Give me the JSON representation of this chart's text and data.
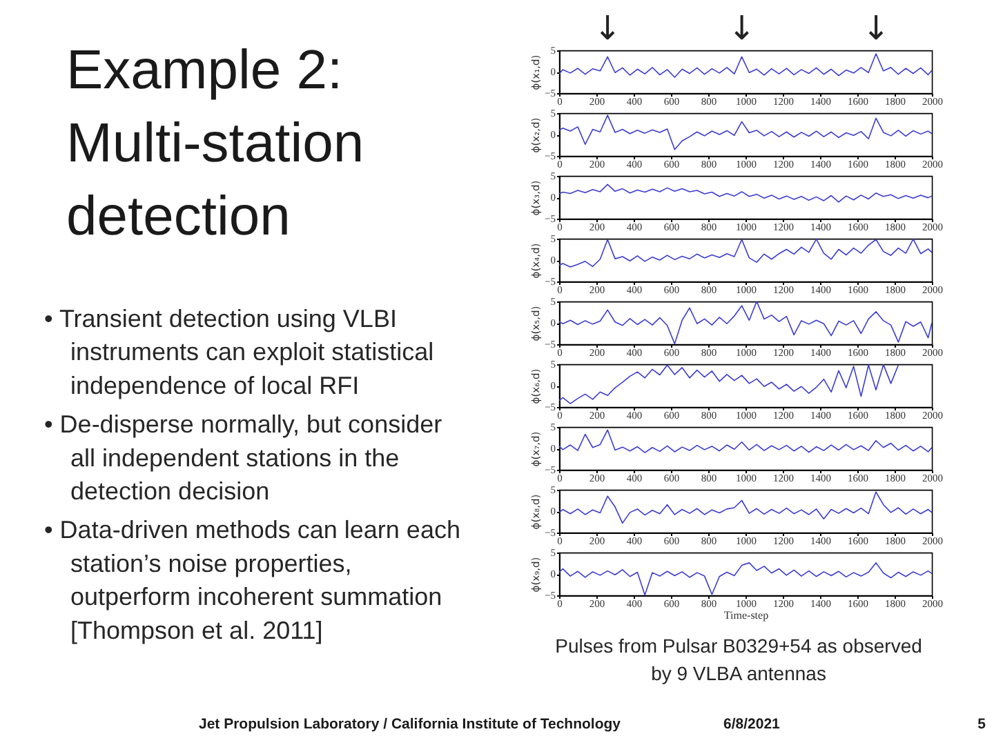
{
  "chart_data": [
    {
      "type": "other",
      "title": "Example 2: Multi-station detection",
      "annotations": [
        "• Transient detection using VLBI instruments can exploit statistical independence of local RFI",
        "• De-disperse normally, but consider all independent stations in the detection decision",
        "• Data-driven methods can learn each station’s noise properties, outperform incoherent summation [Thompson et al. 2011]"
      ]
    },
    {
      "type": "line",
      "ylabel": "ϕ(x₁,d)",
      "color": "#3c3cd2",
      "xlim": [
        0,
        2000
      ],
      "ylim": [
        -5,
        5
      ],
      "xticks": [
        0,
        200,
        400,
        600,
        800,
        1000,
        1200,
        1400,
        1600,
        1800,
        2000
      ],
      "yticks": [
        -5,
        0,
        5
      ],
      "annotations": [
        "↓",
        "↓",
        "↓"
      ],
      "x": [
        0,
        20,
        60,
        100,
        140,
        180,
        220,
        260,
        300,
        340,
        380,
        420,
        460,
        500,
        540,
        580,
        620,
        660,
        700,
        740,
        780,
        820,
        860,
        900,
        940,
        980,
        1020,
        1060,
        1100,
        1140,
        1180,
        1220,
        1260,
        1300,
        1340,
        1380,
        1420,
        1460,
        1500,
        1540,
        1580,
        1620,
        1660,
        1700,
        1740,
        1780,
        1820,
        1860,
        1900,
        1940,
        1980,
        2000
      ],
      "values": [
        -0.5,
        0.5,
        -0.3,
        0.8,
        -0.6,
        0.7,
        0.2,
        3.5,
        -0.2,
        0.9,
        -0.8,
        0.6,
        -0.5,
        1.0,
        -0.7,
        0.5,
        -1.3,
        0.6,
        -0.4,
        0.9,
        -0.6,
        0.7,
        -0.3,
        1.0,
        -0.5,
        3.5,
        -0.2,
        0.6,
        -0.8,
        0.7,
        -0.5,
        0.8,
        -0.7,
        0.5,
        -0.4,
        0.9,
        -0.6,
        0.6,
        -0.9,
        0.4,
        -0.3,
        1.0,
        -0.2,
        4.2,
        0.2,
        1.0,
        -0.6,
        0.8,
        -0.4,
        0.9,
        -0.7,
        0.3
      ]
    },
    {
      "type": "line",
      "ylabel": "ϕ(x₂,d)",
      "color": "#3c3cd2",
      "xlim": [
        0,
        2000
      ],
      "ylim": [
        -5,
        5
      ],
      "xticks": [
        0,
        200,
        400,
        600,
        800,
        1000,
        1200,
        1400,
        1600,
        1800,
        2000
      ],
      "yticks": [
        -5,
        0,
        5
      ],
      "x": [
        0,
        20,
        60,
        100,
        140,
        180,
        220,
        260,
        300,
        340,
        380,
        420,
        460,
        500,
        540,
        580,
        620,
        660,
        700,
        740,
        780,
        820,
        860,
        900,
        940,
        980,
        1020,
        1060,
        1100,
        1140,
        1180,
        1220,
        1260,
        1300,
        1340,
        1380,
        1420,
        1460,
        1500,
        1540,
        1580,
        1620,
        1660,
        1700,
        1740,
        1780,
        1820,
        1860,
        1900,
        1940,
        1980,
        2000
      ],
      "values": [
        1.0,
        1.5,
        0.8,
        1.8,
        -2.3,
        1.2,
        0.6,
        4.5,
        0.5,
        1.2,
        0.2,
        1.0,
        0.3,
        1.1,
        0.5,
        1.3,
        -3.5,
        -1.5,
        -0.5,
        0.6,
        -0.3,
        0.8,
        0.0,
        0.9,
        -0.2,
        3.0,
        0.4,
        1.0,
        -0.3,
        0.7,
        -0.5,
        0.6,
        -0.6,
        0.5,
        -0.4,
        0.8,
        -0.5,
        0.6,
        -0.7,
        0.4,
        -0.2,
        0.7,
        -1.0,
        3.8,
        0.5,
        -0.3,
        1.0,
        -0.4,
        0.9,
        0.1,
        0.8,
        0.2
      ]
    },
    {
      "type": "line",
      "ylabel": "ϕ(x₃,d)",
      "color": "#3c3cd2",
      "xlim": [
        0,
        2000
      ],
      "ylim": [
        -5,
        5
      ],
      "xticks": [
        0,
        200,
        400,
        600,
        800,
        1000,
        1200,
        1400,
        1600,
        1800,
        2000
      ],
      "yticks": [
        -5,
        0,
        5
      ],
      "x": [
        0,
        20,
        60,
        100,
        140,
        180,
        220,
        260,
        300,
        340,
        380,
        420,
        460,
        500,
        540,
        580,
        620,
        660,
        700,
        740,
        780,
        820,
        860,
        900,
        940,
        980,
        1020,
        1060,
        1100,
        1140,
        1180,
        1220,
        1260,
        1300,
        1340,
        1380,
        1420,
        1460,
        1500,
        1540,
        1580,
        1620,
        1660,
        1700,
        1740,
        1780,
        1820,
        1860,
        1900,
        1940,
        1980,
        2000
      ],
      "values": [
        0.8,
        1.2,
        0.9,
        1.6,
        1.1,
        1.8,
        1.3,
        3.0,
        1.4,
        2.0,
        1.0,
        1.7,
        1.2,
        1.9,
        1.3,
        2.2,
        1.4,
        2.0,
        1.3,
        1.6,
        0.8,
        1.2,
        0.2,
        0.9,
        0.3,
        1.3,
        0.2,
        0.7,
        -0.2,
        0.5,
        -0.4,
        0.3,
        -0.5,
        0.2,
        -0.7,
        0.1,
        -0.8,
        0.4,
        -1.1,
        0.3,
        -0.6,
        0.5,
        -0.4,
        1.0,
        0.2,
        0.6,
        -0.3,
        0.4,
        -0.2,
        0.5,
        -0.1,
        0.3
      ]
    },
    {
      "type": "line",
      "ylabel": "ϕ(x₄,d)",
      "color": "#3c3cd2",
      "xlim": [
        0,
        2000
      ],
      "ylim": [
        -5,
        5
      ],
      "xticks": [
        0,
        200,
        400,
        600,
        800,
        1000,
        1200,
        1400,
        1600,
        1800,
        2000
      ],
      "yticks": [
        -5,
        0,
        5
      ],
      "x": [
        0,
        20,
        60,
        100,
        140,
        180,
        220,
        260,
        300,
        340,
        380,
        420,
        460,
        500,
        540,
        580,
        620,
        660,
        700,
        740,
        780,
        820,
        860,
        900,
        940,
        980,
        1020,
        1060,
        1100,
        1140,
        1180,
        1220,
        1260,
        1300,
        1340,
        1380,
        1420,
        1460,
        1500,
        1540,
        1580,
        1620,
        1660,
        1700,
        1740,
        1780,
        1820,
        1860,
        1900,
        1940,
        1980,
        2000
      ],
      "values": [
        -1.2,
        -0.8,
        -1.6,
        -1.0,
        -0.3,
        -1.5,
        0.2,
        4.8,
        0.3,
        0.8,
        -0.2,
        1.0,
        -0.3,
        0.7,
        0.0,
        1.1,
        0.1,
        0.9,
        0.3,
        1.4,
        0.5,
        1.2,
        0.6,
        1.5,
        0.8,
        4.8,
        0.5,
        -0.5,
        1.4,
        0.2,
        1.5,
        2.5,
        1.4,
        3.0,
        1.8,
        4.9,
        1.6,
        0.2,
        2.5,
        1.2,
        2.8,
        1.6,
        3.5,
        4.8,
        2.0,
        1.1,
        2.8,
        1.6,
        4.9,
        1.5,
        2.6,
        1.8
      ]
    },
    {
      "type": "line",
      "ylabel": "ϕ(x₅,d)",
      "color": "#3c3cd2",
      "xlim": [
        0,
        2000
      ],
      "ylim": [
        -5,
        5
      ],
      "xticks": [
        0,
        200,
        400,
        600,
        800,
        1000,
        1200,
        1400,
        1600,
        1800,
        2000
      ],
      "yticks": [
        -5,
        0,
        5
      ],
      "x": [
        0,
        20,
        60,
        100,
        140,
        180,
        220,
        260,
        300,
        340,
        380,
        420,
        460,
        500,
        540,
        580,
        620,
        660,
        700,
        740,
        780,
        820,
        860,
        900,
        940,
        980,
        1020,
        1060,
        1100,
        1140,
        1180,
        1220,
        1260,
        1300,
        1340,
        1380,
        1420,
        1460,
        1500,
        1540,
        1580,
        1620,
        1660,
        1700,
        1740,
        1780,
        1820,
        1860,
        1900,
        1940,
        1980,
        2000
      ],
      "values": [
        0.3,
        -0.2,
        0.6,
        -0.4,
        0.5,
        -0.3,
        0.4,
        3.0,
        0.2,
        -0.6,
        1.0,
        -0.4,
        0.8,
        -0.5,
        1.2,
        -0.6,
        -4.9,
        0.6,
        3.5,
        -0.2,
        0.9,
        -0.5,
        1.3,
        -0.2,
        1.6,
        4.0,
        0.6,
        5.0,
        0.9,
        1.8,
        0.3,
        1.5,
        -2.8,
        0.5,
        -0.3,
        0.6,
        -0.2,
        -3.0,
        0.4,
        -0.5,
        0.5,
        -2.5,
        0.9,
        2.6,
        0.5,
        -0.5,
        -4.5,
        0.3,
        -0.8,
        0.2,
        -3.5,
        0.0
      ]
    },
    {
      "type": "line",
      "ylabel": "ϕ(x₆,d)",
      "color": "#3c3cd2",
      "xlim": [
        0,
        2000
      ],
      "ylim": [
        -5,
        5
      ],
      "xticks": [
        0,
        200,
        400,
        600,
        800,
        1000,
        1200,
        1400,
        1600,
        1800,
        2000
      ],
      "yticks": [
        -5,
        0,
        5
      ],
      "x": [
        0,
        20,
        60,
        100,
        140,
        180,
        220,
        260,
        300,
        340,
        380,
        420,
        460,
        500,
        540,
        580,
        620,
        660,
        700,
        740,
        780,
        820,
        860,
        900,
        940,
        980,
        1020,
        1060,
        1100,
        1140,
        1180,
        1220,
        1260,
        1300,
        1340,
        1380,
        1420,
        1460,
        1500,
        1540,
        1580,
        1620,
        1660,
        1700,
        1740,
        1780,
        1820
      ],
      "values": [
        -3.5,
        -2.8,
        -4.2,
        -3.0,
        -2.0,
        -3.2,
        -1.5,
        -2.3,
        -0.5,
        0.8,
        2.2,
        3.2,
        1.8,
        3.8,
        2.5,
        4.8,
        2.6,
        4.2,
        1.8,
        3.6,
        2.0,
        3.4,
        1.0,
        2.6,
        1.2,
        2.4,
        0.5,
        1.6,
        -0.2,
        0.8,
        -0.8,
        0.3,
        -1.3,
        -0.2,
        -1.8,
        -0.4,
        1.5,
        -1.5,
        3.5,
        -0.5,
        4.5,
        -2.5,
        4.8,
        -1.0,
        4.9,
        0.5,
        4.8
      ]
    },
    {
      "type": "line",
      "ylabel": "ϕ(x₇,d)",
      "color": "#3c3cd2",
      "xlim": [
        0,
        2000
      ],
      "ylim": [
        -5,
        5
      ],
      "xticks": [
        0,
        200,
        400,
        600,
        800,
        1000,
        1200,
        1400,
        1600,
        1800,
        2000
      ],
      "yticks": [
        -5,
        0,
        5
      ],
      "x": [
        0,
        20,
        60,
        100,
        140,
        180,
        220,
        260,
        300,
        340,
        380,
        420,
        460,
        500,
        540,
        580,
        620,
        660,
        700,
        740,
        780,
        820,
        860,
        900,
        940,
        980,
        1020,
        1060,
        1100,
        1140,
        1180,
        1220,
        1260,
        1300,
        1340,
        1380,
        1420,
        1460,
        1500,
        1540,
        1580,
        1620,
        1660,
        1700,
        1740,
        1780,
        1820,
        1860,
        1900,
        1940,
        1980,
        2000
      ],
      "values": [
        0.5,
        -0.3,
        0.8,
        -0.5,
        3.3,
        0.2,
        0.9,
        4.3,
        -0.4,
        0.3,
        -0.6,
        0.4,
        -1.0,
        0.2,
        -0.7,
        0.6,
        -0.8,
        0.3,
        -0.5,
        0.7,
        -0.3,
        0.5,
        -0.6,
        0.8,
        -0.2,
        1.5,
        -0.4,
        0.9,
        -0.5,
        0.6,
        -0.3,
        0.7,
        -0.6,
        0.5,
        -0.9,
        0.4,
        -0.5,
        0.8,
        -0.4,
        0.9,
        -0.3,
        0.6,
        -0.5,
        1.8,
        0.2,
        1.2,
        -0.4,
        0.7,
        -0.6,
        0.5,
        -0.8,
        0.2
      ]
    },
    {
      "type": "line",
      "ylabel": "ϕ(x₈,d)",
      "color": "#3c3cd2",
      "xlim": [
        0,
        2000
      ],
      "ylim": [
        -5,
        5
      ],
      "xticks": [
        0,
        200,
        400,
        600,
        800,
        1000,
        1200,
        1400,
        1600,
        1800,
        2000
      ],
      "yticks": [
        -5,
        0,
        5
      ],
      "x": [
        0,
        20,
        60,
        100,
        140,
        180,
        220,
        260,
        300,
        340,
        380,
        420,
        460,
        500,
        540,
        580,
        620,
        660,
        700,
        740,
        780,
        820,
        860,
        900,
        940,
        980,
        1020,
        1060,
        1100,
        1140,
        1180,
        1220,
        1260,
        1300,
        1340,
        1380,
        1420,
        1460,
        1500,
        1540,
        1580,
        1620,
        1660,
        1700,
        1740,
        1780,
        1820,
        1860,
        1900,
        1940,
        1980,
        2000
      ],
      "values": [
        -0.3,
        0.4,
        -0.6,
        0.5,
        -0.8,
        0.3,
        -0.4,
        3.5,
        1.0,
        -2.8,
        -0.3,
        0.5,
        -0.9,
        0.2,
        -0.6,
        1.5,
        -0.8,
        0.4,
        -0.5,
        0.6,
        -0.8,
        0.3,
        -0.4,
        0.5,
        0.8,
        2.5,
        -0.5,
        0.6,
        -0.7,
        0.4,
        -0.5,
        0.7,
        -0.6,
        0.3,
        -0.8,
        0.5,
        -1.8,
        0.4,
        -0.5,
        0.6,
        -0.4,
        0.7,
        -0.6,
        4.5,
        1.5,
        -0.3,
        0.8,
        -0.7,
        0.5,
        -0.6,
        0.4,
        -0.3
      ]
    },
    {
      "type": "line",
      "ylabel": "ϕ(x₉,d)",
      "xlabel": "Time-step",
      "color": "#3c3cd2",
      "xlim": [
        0,
        2000
      ],
      "ylim": [
        -5,
        5
      ],
      "xticks": [
        0,
        200,
        400,
        600,
        800,
        1000,
        1200,
        1400,
        1600,
        1800,
        2000
      ],
      "yticks": [
        -5,
        0,
        5
      ],
      "annotations": [
        "Pulses from Pulsar B0329+54 as observed by 9 VLBA antennas"
      ],
      "x": [
        0,
        20,
        60,
        100,
        140,
        180,
        220,
        260,
        300,
        340,
        380,
        420,
        460,
        500,
        540,
        580,
        620,
        660,
        700,
        740,
        780,
        820,
        860,
        900,
        940,
        980,
        1020,
        1060,
        1100,
        1140,
        1180,
        1220,
        1260,
        1300,
        1340,
        1380,
        1420,
        1460,
        1500,
        1540,
        1580,
        1620,
        1660,
        1700,
        1740,
        1780,
        1820,
        1860,
        1900,
        1940,
        1980,
        2000
      ],
      "values": [
        0.4,
        1.2,
        -0.5,
        0.6,
        -0.8,
        0.5,
        -0.3,
        0.7,
        -0.2,
        1.0,
        -0.6,
        0.4,
        -4.9,
        0.3,
        -0.5,
        0.6,
        -0.4,
        0.5,
        -0.8,
        0.3,
        -0.5,
        -4.8,
        -0.6,
        0.4,
        -0.4,
        2.0,
        2.6,
        0.8,
        1.8,
        0.2,
        1.2,
        -0.3,
        0.9,
        -0.5,
        0.7,
        -0.6,
        0.5,
        -0.4,
        0.6,
        -0.7,
        0.3,
        -0.5,
        0.4,
        2.6,
        0.2,
        -0.9,
        0.4,
        -0.6,
        0.5,
        -0.3,
        0.7,
        0.1
      ]
    },
    {
      "type": "other",
      "annotations": [
        "Jet Propulsion Laboratory / California Institute of Technology",
        "6/8/2021",
        "5"
      ]
    }
  ]
}
